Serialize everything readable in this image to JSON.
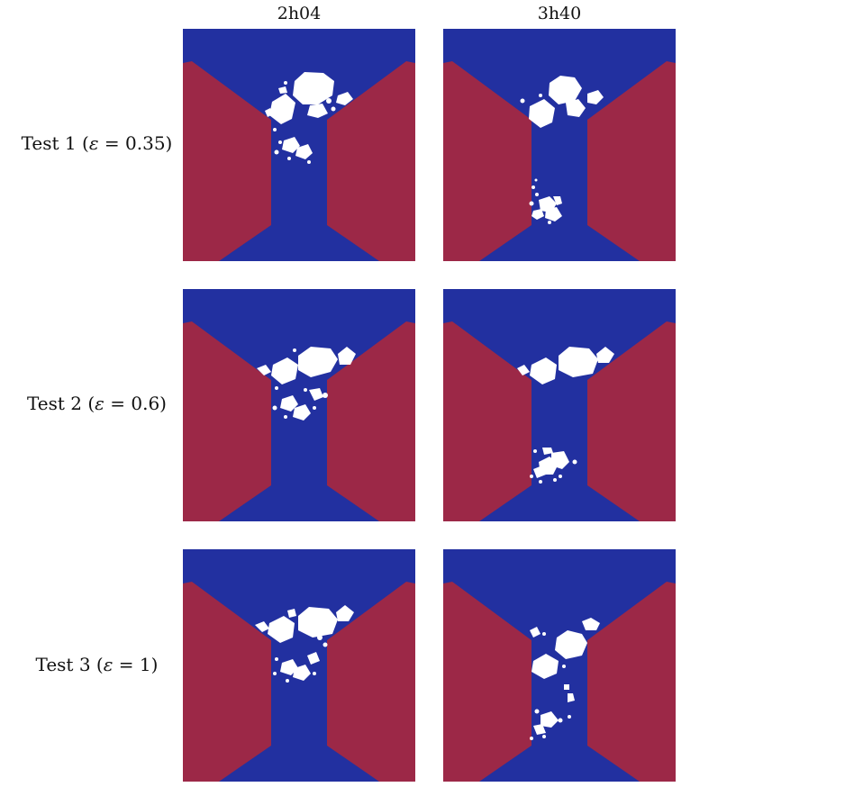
{
  "columns": [
    "2h04",
    "3h40"
  ],
  "rows": [
    {
      "test": "Test 1",
      "open": " (",
      "sym": "ε",
      "eq": " = 0.35)"
    },
    {
      "test": "Test 2",
      "open": " (",
      "sym": "ε",
      "eq": " = 0.6)"
    },
    {
      "test": "Test 3",
      "open": " (",
      "sym": "ε",
      "eq": " = 1)"
    }
  ],
  "colors": {
    "fluid": "#2230a0",
    "wall": "#9c2847",
    "grain": "#ffffff"
  }
}
